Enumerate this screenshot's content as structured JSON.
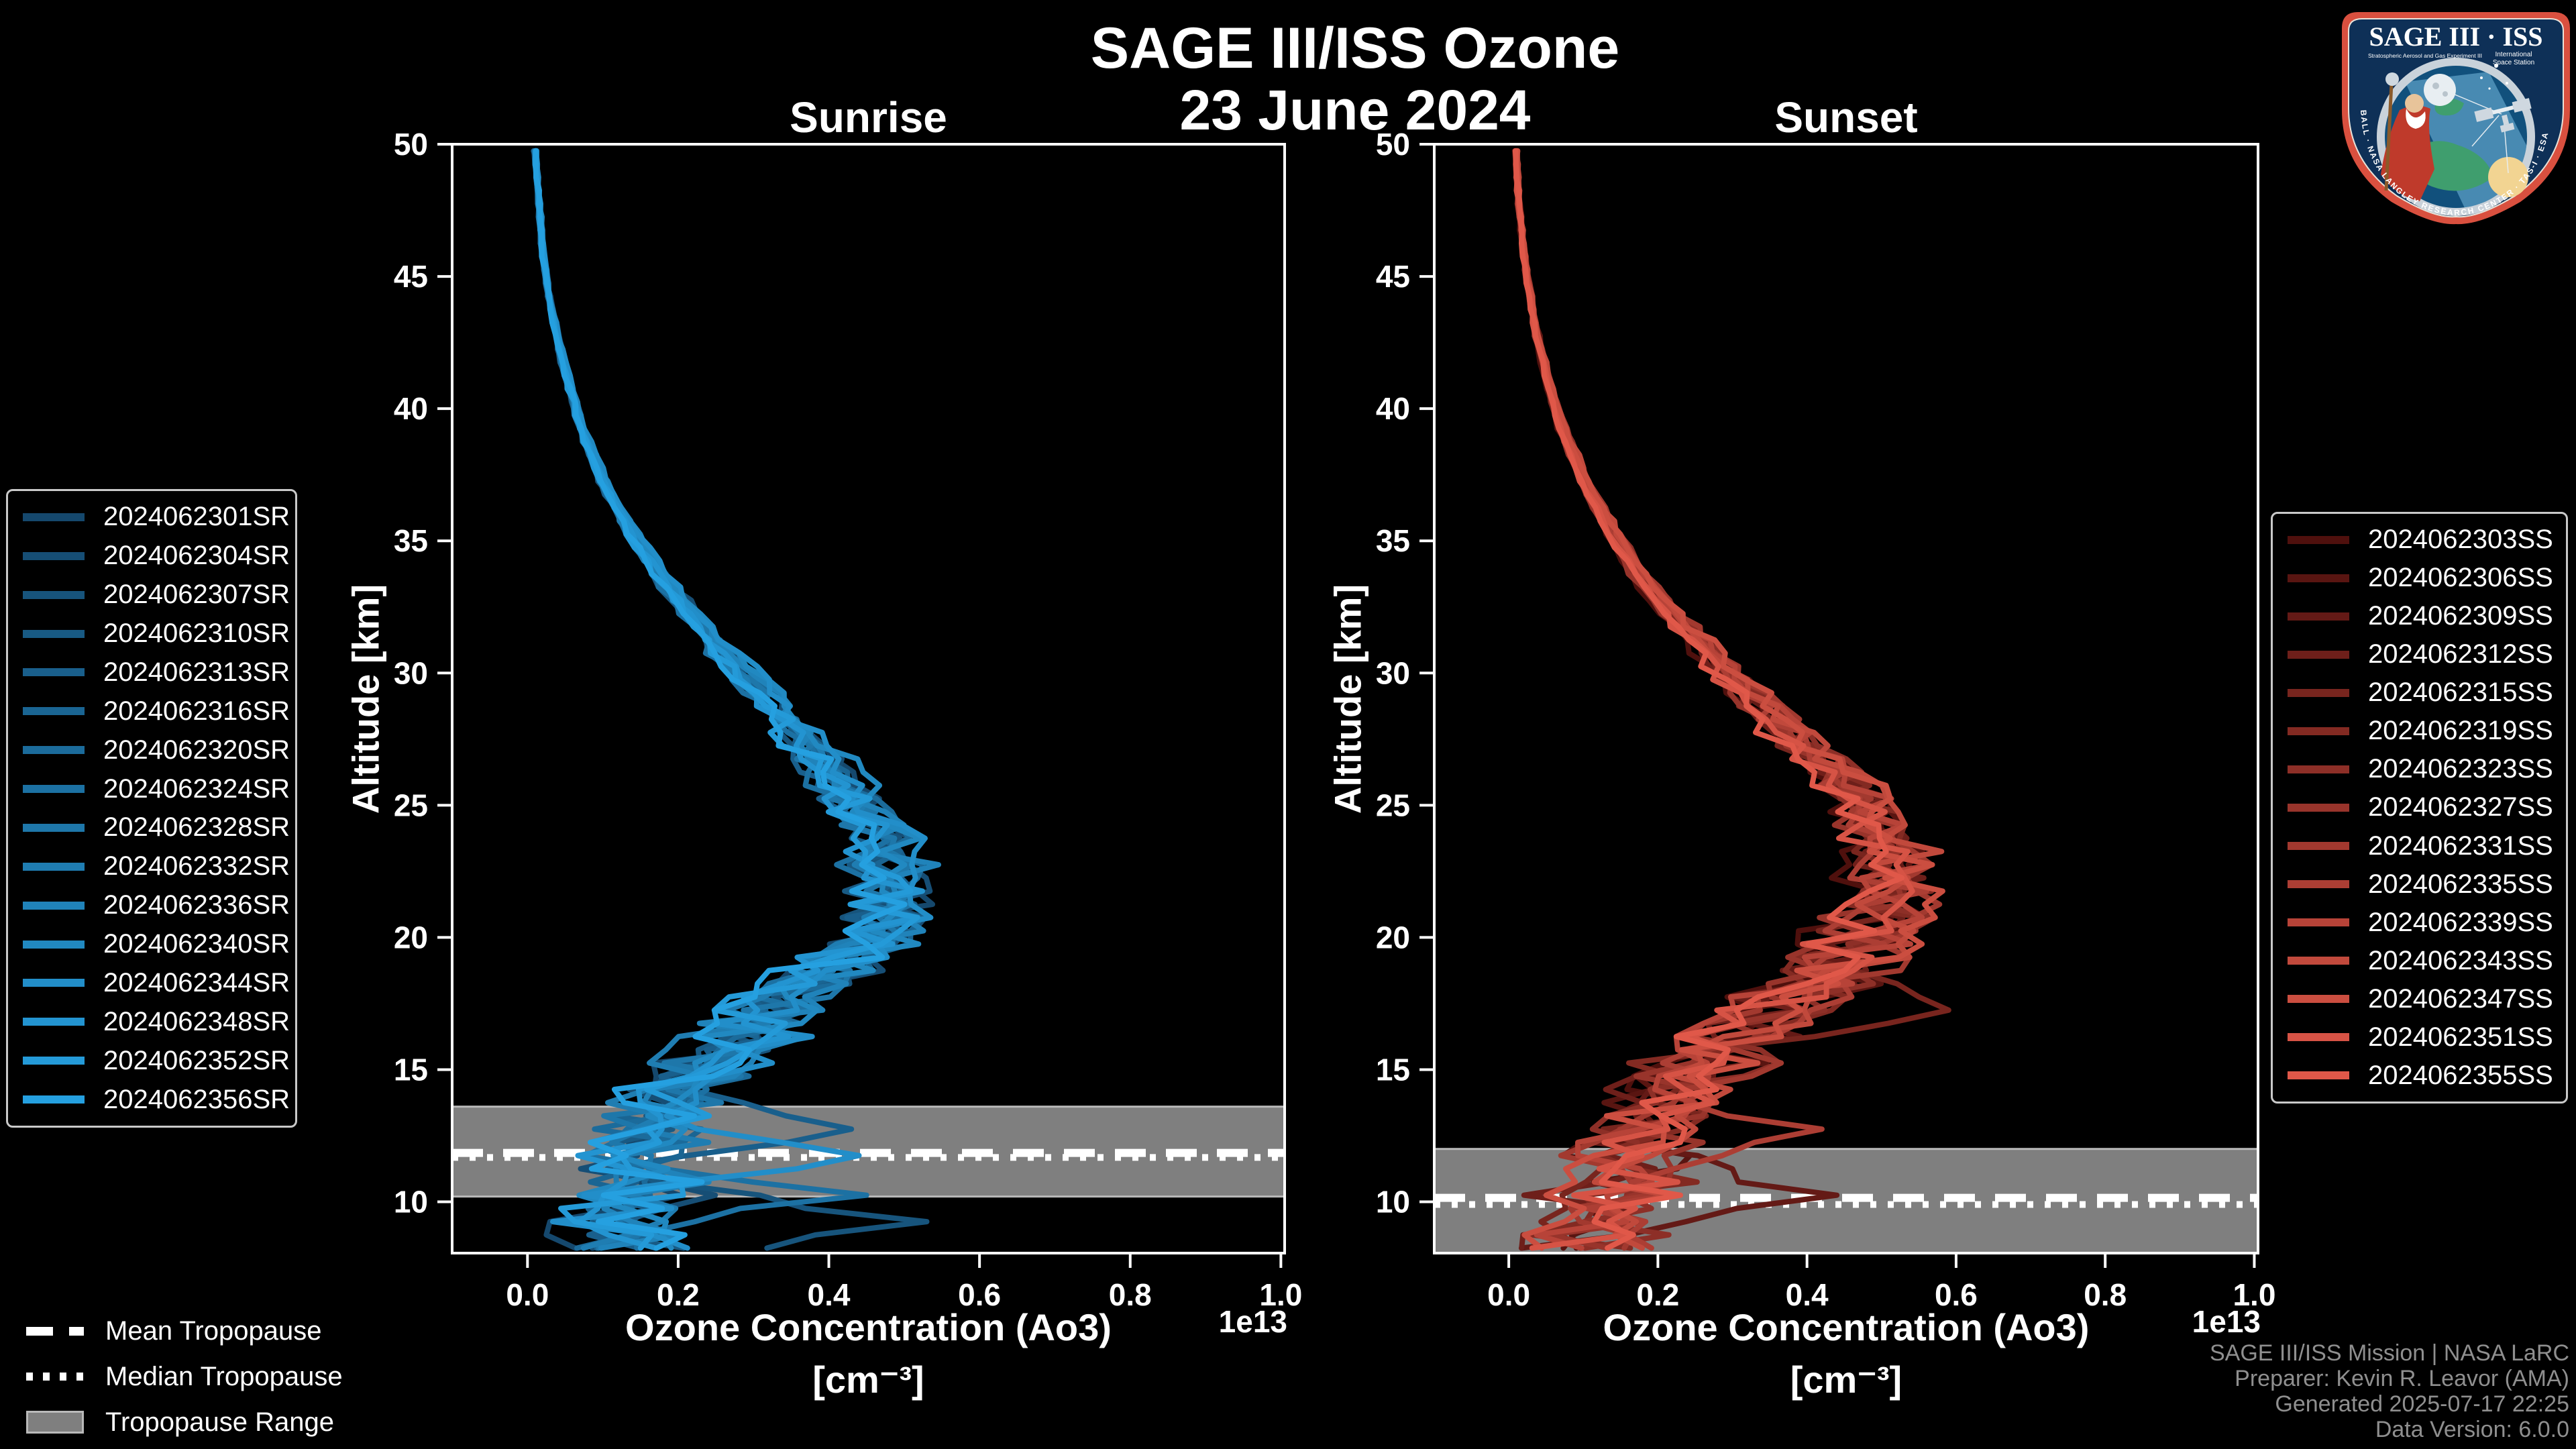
{
  "header": {
    "title": "SAGE III/ISS Ozone",
    "date": "23 June 2024"
  },
  "footer": {
    "lines": [
      "SAGE III/ISS Mission | NASA LaRC",
      "Preparer: Kevin R. Leavor (AMA)",
      "Generated 2025-07-17 22:25",
      "Data Version: 6.0.0"
    ]
  },
  "logo": {
    "title": "SAGE III · ISS",
    "subtitle_left": "Stratospheric Aerosol and Gas Experiment III",
    "subtitle_right_1": "International",
    "subtitle_right_2": "Space Station",
    "border_text": "BALL · NASA LANGLEY RESEARCH CENTER · TAS-I · ESA"
  },
  "tropopause_legend": [
    {
      "label": "Mean Tropopause",
      "style": "dashed"
    },
    {
      "label": "Median Tropopause",
      "style": "dotted"
    },
    {
      "label": "Tropopause Range",
      "style": "band"
    }
  ],
  "colors": {
    "background": "#000000",
    "foreground": "#ffffff",
    "credit_text": "#8f8f8f",
    "tropopause_band": "#7f7f7f",
    "tropopause_band_edge": "#b9b9b9",
    "sunrise_ramp": [
      "#15486d",
      "#25a0e0"
    ],
    "sunset_ramp": [
      "#4f100d",
      "#e05849"
    ]
  },
  "chart_data": [
    {
      "type": "line",
      "panel_title": "Sunrise",
      "ylabel": "Altitude [km]",
      "xlabel_line1": "Ozone Concentration (Ao3)",
      "xlabel_line2": "[cm⁻³]",
      "offset_label": "1e13",
      "xlim_1e13": [
        -0.1,
        1.005
      ],
      "ylim_km": [
        8.06,
        50
      ],
      "xticks_1e13": [
        0.0,
        0.2,
        0.4,
        0.6,
        0.8,
        1.0
      ],
      "yticks_km": [
        10,
        15,
        20,
        25,
        30,
        35,
        40,
        45,
        50
      ],
      "series": [
        "2024062301SR",
        "2024062304SR",
        "2024062307SR",
        "2024062310SR",
        "2024062313SR",
        "2024062316SR",
        "2024062320SR",
        "2024062324SR",
        "2024062328SR",
        "2024062332SR",
        "2024062336SR",
        "2024062340SR",
        "2024062344SR",
        "2024062348SR",
        "2024062352SR",
        "2024062356SR"
      ],
      "mean_profile": {
        "altitude_km": [
          8,
          9,
          10,
          11,
          12,
          13,
          14,
          15,
          16,
          17,
          18,
          19,
          20,
          21,
          22,
          23,
          24,
          25,
          26,
          27,
          28,
          29,
          30,
          31,
          32,
          33,
          34,
          35,
          36,
          37,
          38,
          39,
          40,
          41,
          42,
          43,
          44,
          45,
          46,
          47,
          48,
          49,
          50
        ],
        "ozone_1e13": [
          0.13,
          0.13,
          0.14,
          0.14,
          0.15,
          0.17,
          0.2,
          0.23,
          0.27,
          0.31,
          0.36,
          0.42,
          0.46,
          0.48,
          0.49,
          0.48,
          0.46,
          0.44,
          0.41,
          0.38,
          0.35,
          0.32,
          0.285,
          0.255,
          0.225,
          0.195,
          0.17,
          0.145,
          0.125,
          0.105,
          0.09,
          0.075,
          0.065,
          0.055,
          0.045,
          0.038,
          0.03,
          0.025,
          0.02,
          0.017,
          0.015,
          0.012,
          0.01
        ]
      },
      "spread": {
        "altitude_km": [
          8,
          12,
          14,
          16,
          18,
          20,
          23,
          26,
          30,
          35,
          40,
          50
        ],
        "relative": [
          0.45,
          0.4,
          0.34,
          0.28,
          0.2,
          0.13,
          0.1,
          0.08,
          0.05,
          0.03,
          0.025,
          0.02
        ],
        "absolute_1e13": [
          0.06,
          0.05,
          0.035,
          0.02,
          0.01,
          0.006,
          0.005,
          0.004,
          0.003,
          0.002,
          0.002,
          0.002
        ]
      },
      "anomalies": [
        {
          "series_index": 2,
          "altitude_km": 9.5,
          "ozone_1e13": 0.53
        },
        {
          "series_index": 7,
          "altitude_km": 10.5,
          "ozone_1e13": 0.45
        },
        {
          "series_index": 4,
          "altitude_km": 13.0,
          "ozone_1e13": 0.43
        },
        {
          "series_index": 12,
          "altitude_km": 12.0,
          "ozone_1e13": 0.44
        }
      ],
      "tropopause": {
        "mean_km": 11.85,
        "median_km": 11.68,
        "range_km": [
          10.2,
          13.6
        ]
      }
    },
    {
      "type": "line",
      "panel_title": "Sunset",
      "ylabel": "Altitude [km]",
      "xlabel_line1": "Ozone Concentration (Ao3)",
      "xlabel_line2": "[cm⁻³]",
      "offset_label": "1e13",
      "xlim_1e13": [
        -0.1,
        1.005
      ],
      "ylim_km": [
        8.06,
        50
      ],
      "xticks_1e13": [
        0.0,
        0.2,
        0.4,
        0.6,
        0.8,
        1.0
      ],
      "yticks_km": [
        10,
        15,
        20,
        25,
        30,
        35,
        40,
        45,
        50
      ],
      "series": [
        "2024062303SS",
        "2024062306SS",
        "2024062309SS",
        "2024062312SS",
        "2024062315SS",
        "2024062319SS",
        "2024062323SS",
        "2024062327SS",
        "2024062331SS",
        "2024062335SS",
        "2024062339SS",
        "2024062343SS",
        "2024062347SS",
        "2024062351SS",
        "2024062355SS"
      ],
      "mean_profile": {
        "altitude_km": [
          8,
          9,
          10,
          11,
          12,
          13,
          14,
          15,
          16,
          17,
          18,
          19,
          20,
          21,
          22,
          23,
          24,
          25,
          26,
          27,
          28,
          29,
          30,
          31,
          32,
          33,
          34,
          35,
          36,
          37,
          38,
          39,
          40,
          41,
          42,
          43,
          44,
          45,
          46,
          47,
          48,
          49,
          50
        ],
        "ozone_1e13": [
          0.1,
          0.11,
          0.13,
          0.15,
          0.17,
          0.19,
          0.22,
          0.25,
          0.29,
          0.34,
          0.39,
          0.43,
          0.47,
          0.5,
          0.51,
          0.51,
          0.5,
          0.47,
          0.44,
          0.4,
          0.36,
          0.33,
          0.29,
          0.26,
          0.225,
          0.195,
          0.17,
          0.145,
          0.125,
          0.105,
          0.09,
          0.075,
          0.063,
          0.053,
          0.044,
          0.036,
          0.03,
          0.024,
          0.02,
          0.016,
          0.013,
          0.011,
          0.009
        ]
      },
      "spread": {
        "altitude_km": [
          8,
          12,
          14,
          16,
          18,
          20,
          23,
          26,
          30,
          35,
          40,
          50
        ],
        "relative": [
          0.5,
          0.45,
          0.38,
          0.3,
          0.22,
          0.14,
          0.1,
          0.08,
          0.05,
          0.03,
          0.025,
          0.02
        ],
        "absolute_1e13": [
          0.06,
          0.05,
          0.035,
          0.02,
          0.01,
          0.006,
          0.005,
          0.004,
          0.003,
          0.002,
          0.002,
          0.002
        ]
      },
      "anomalies": [
        {
          "series_index": 4,
          "altitude_km": 17.3,
          "ozone_1e13": 0.65
        },
        {
          "series_index": 4,
          "altitude_km": 18.0,
          "ozone_1e13": 0.55
        },
        {
          "series_index": 2,
          "altitude_km": 10.3,
          "ozone_1e13": 0.44
        },
        {
          "series_index": 9,
          "altitude_km": 12.8,
          "ozone_1e13": 0.42
        }
      ],
      "tropopause": {
        "mean_km": 10.15,
        "median_km": 9.9,
        "range_km": [
          8.06,
          12.0
        ]
      }
    }
  ]
}
